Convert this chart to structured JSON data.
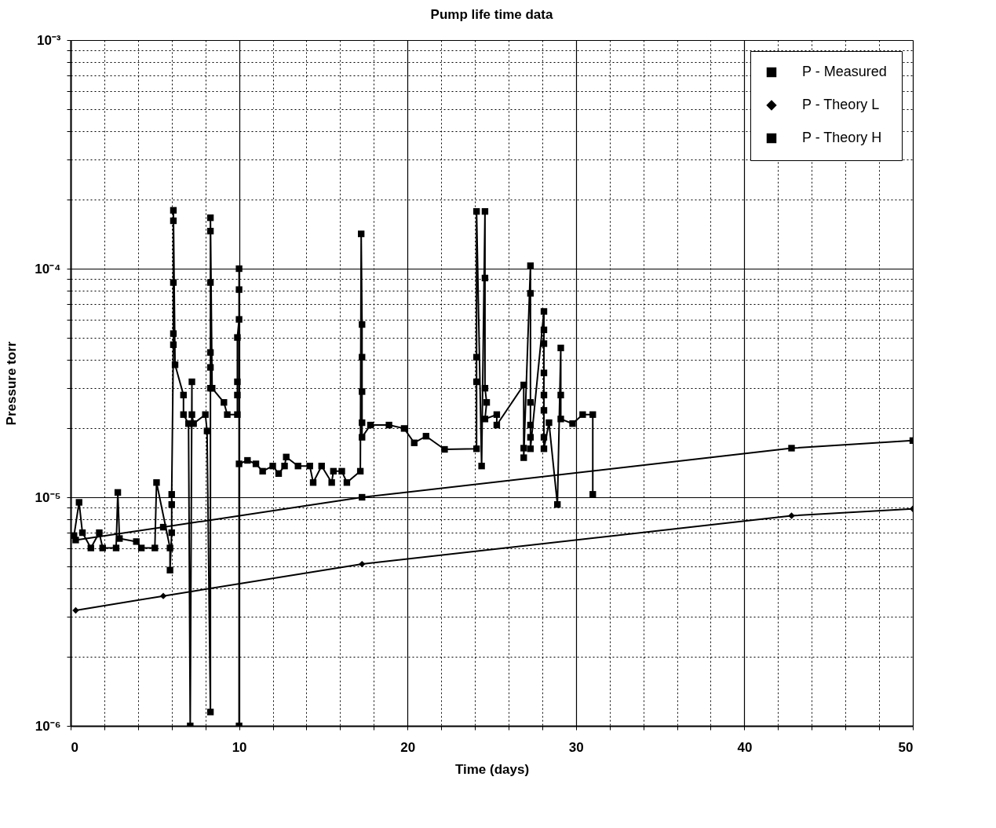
{
  "chart_data": {
    "type": "line",
    "title": "Pump life time data",
    "xlabel": "Time  (days)",
    "ylabel": "Pressure torr",
    "log": "y",
    "grid": true,
    "legend": "top right",
    "line_style": "solid",
    "xlim": [
      0,
      50
    ],
    "xticks": [
      0,
      {
        "value": 2,
        "label": null
      },
      {
        "value": 4,
        "label": null
      },
      {
        "value": 6,
        "label": null
      },
      {
        "value": 8,
        "label": null
      },
      10,
      {
        "value": 12,
        "label": null
      },
      {
        "value": 14,
        "label": null
      },
      {
        "value": 16,
        "label": null
      },
      {
        "value": 18,
        "label": null
      },
      20,
      {
        "value": 22,
        "label": null
      },
      {
        "value": 24,
        "label": null
      },
      {
        "value": 26,
        "label": null
      },
      {
        "value": 28,
        "label": null
      },
      30,
      {
        "value": 32,
        "label": null
      },
      {
        "value": 34,
        "label": null
      },
      {
        "value": 36,
        "label": null
      },
      {
        "value": 38,
        "label": null
      },
      40,
      {
        "value": 42,
        "label": null
      },
      {
        "value": 44,
        "label": null
      },
      {
        "value": 46,
        "label": null
      },
      {
        "value": 48,
        "label": null
      },
      50
    ],
    "ylim": [
      1e-06,
      0.001
    ],
    "yticks": [
      {
        "value": 1e-06,
        "label": "10⁻⁶"
      },
      {
        "value": 2e-06,
        "label": null
      },
      {
        "value": 3e-06,
        "label": null
      },
      {
        "value": 4e-06,
        "label": null
      },
      {
        "value": 5e-06,
        "label": null
      },
      {
        "value": 6e-06,
        "label": null
      },
      {
        "value": 7e-06,
        "label": null
      },
      {
        "value": 8e-06,
        "label": null
      },
      {
        "value": 9e-06,
        "label": null
      },
      {
        "value": 1e-05,
        "label": "10⁻⁵"
      },
      {
        "value": 2e-05,
        "label": null
      },
      {
        "value": 3e-05,
        "label": null
      },
      {
        "value": 4e-05,
        "label": null
      },
      {
        "value": 5e-05,
        "label": null
      },
      {
        "value": 6e-05,
        "label": null
      },
      {
        "value": 7e-05,
        "label": null
      },
      {
        "value": 8e-05,
        "label": null
      },
      {
        "value": 9e-05,
        "label": null
      },
      {
        "value": 0.0001,
        "label": "10⁻⁴"
      },
      {
        "value": 0.0002,
        "label": null
      },
      {
        "value": 0.0003,
        "label": null
      },
      {
        "value": 0.0004,
        "label": null
      },
      {
        "value": 0.0005,
        "label": null
      },
      {
        "value": 0.0006,
        "label": null
      },
      {
        "value": 0.0007,
        "label": null
      },
      {
        "value": 0.0008,
        "label": null
      },
      {
        "value": 0.0009,
        "label": null
      },
      {
        "value": 0.001,
        "label": "10⁻³"
      }
    ],
    "series": [
      {
        "name": "P - Measured",
        "color": "#000000",
        "marker": "square",
        "x": [
          0.2,
          0.5,
          0.7,
          1.2,
          1.7,
          1.9,
          2.7,
          2.8,
          2.9,
          3.9,
          4.2,
          5.0,
          5.1,
          5.9,
          5.9,
          6.0,
          6.0,
          6.0,
          6.1,
          6.1,
          6.1,
          6.1,
          6.1,
          6.2,
          6.7,
          6.7,
          7.0,
          7.1,
          7.2,
          7.2,
          7.3,
          8.0,
          8.1,
          8.3,
          8.3,
          8.3,
          8.3,
          8.3,
          8.3,
          8.3,
          8.4,
          9.1,
          9.3,
          9.9,
          9.9,
          9.9,
          9.9,
          10.0,
          10.0,
          10.0,
          10.0,
          10.0,
          10.5,
          11.0,
          11.4,
          12.0,
          12.35,
          12.7,
          12.8,
          13.5,
          14.2,
          14.4,
          14.9,
          15.5,
          15.6,
          16.1,
          16.4,
          17.2,
          17.25,
          17.3,
          17.3,
          17.3,
          17.3,
          17.3,
          17.8,
          18.9,
          19.8,
          20.4,
          21.1,
          22.2,
          24.1,
          24.1,
          24.1,
          24.1,
          24.4,
          24.6,
          24.6,
          24.6,
          24.7,
          24.6,
          25.3,
          25.3,
          26.9,
          26.9,
          26.9,
          27.3,
          27.3,
          27.3,
          27.3,
          27.3,
          27.3,
          28.1,
          28.1,
          28.1,
          28.1,
          28.1,
          28.1,
          28.1,
          28.1,
          28.4,
          28.9,
          29.1,
          29.1,
          29.1,
          29.8,
          30.4,
          31.0,
          31.0
        ],
        "values": [
          6.8e-06,
          9.5e-06,
          7e-06,
          6e-06,
          7e-06,
          6e-06,
          6e-06,
          1.05e-05,
          6.6e-06,
          6.4e-06,
          6e-06,
          6e-06,
          1.16e-05,
          6e-06,
          4.8e-06,
          7e-06,
          9.3e-06,
          1.03e-05,
          4.65e-05,
          5.2e-05,
          8.7e-05,
          0.000162,
          0.00018,
          3.8e-05,
          2.8e-05,
          2.3e-05,
          2.1e-05,
          1e-06,
          3.2e-05,
          2.3e-05,
          2.1e-05,
          2.3e-05,
          1.95e-05,
          1.15e-06,
          3e-05,
          3.7e-05,
          4.3e-05,
          8.7e-05,
          0.000146,
          0.000167,
          3e-05,
          2.6e-05,
          2.3e-05,
          2.3e-05,
          2.8e-05,
          3.2e-05,
          5e-05,
          6e-05,
          8.1e-05,
          0.0001,
          1e-06,
          1.4e-05,
          1.45e-05,
          1.4e-05,
          1.3e-05,
          1.37e-05,
          1.27e-05,
          1.37e-05,
          1.5e-05,
          1.37e-05,
          1.37e-05,
          1.16e-05,
          1.37e-05,
          1.16e-05,
          1.3e-05,
          1.3e-05,
          1.16e-05,
          1.3e-05,
          0.000142,
          5.7e-05,
          4.1e-05,
          2.9e-05,
          2.12e-05,
          1.83e-05,
          2.07e-05,
          2.07e-05,
          2e-05,
          1.73e-05,
          1.85e-05,
          1.62e-05,
          1.63e-05,
          4.1e-05,
          3.2e-05,
          0.000178,
          1.37e-05,
          0.000178,
          9.1e-05,
          3e-05,
          2.6e-05,
          2.2e-05,
          2.3e-05,
          2.07e-05,
          3.1e-05,
          1.64e-05,
          1.49e-05,
          0.000103,
          7.8e-05,
          2.6e-05,
          2.07e-05,
          1.83e-05,
          1.63e-05,
          6.5e-05,
          5.4e-05,
          4.7e-05,
          3.5e-05,
          2.8e-05,
          2.4e-05,
          1.83e-05,
          1.63e-05,
          2.12e-05,
          9.3e-06,
          4.5e-05,
          2.8e-05,
          2.2e-05,
          2.1e-05,
          2.3e-05,
          2.3e-05,
          1.03e-05
        ]
      },
      {
        "name": "P - Theory L",
        "color": "#000000",
        "marker": "diamond",
        "x": [
          0.3,
          5.5,
          17.3,
          42.8,
          50
        ],
        "values": [
          3.2e-06,
          3.7e-06,
          5.1e-06,
          8.3e-06,
          8.9e-06
        ]
      },
      {
        "name": "P - Theory H",
        "color": "#000000",
        "marker": "square",
        "x": [
          0.3,
          5.5,
          17.3,
          42.8,
          50
        ],
        "values": [
          6.5e-06,
          7.4e-06,
          1e-05,
          1.64e-05,
          1.77e-05
        ]
      }
    ]
  }
}
